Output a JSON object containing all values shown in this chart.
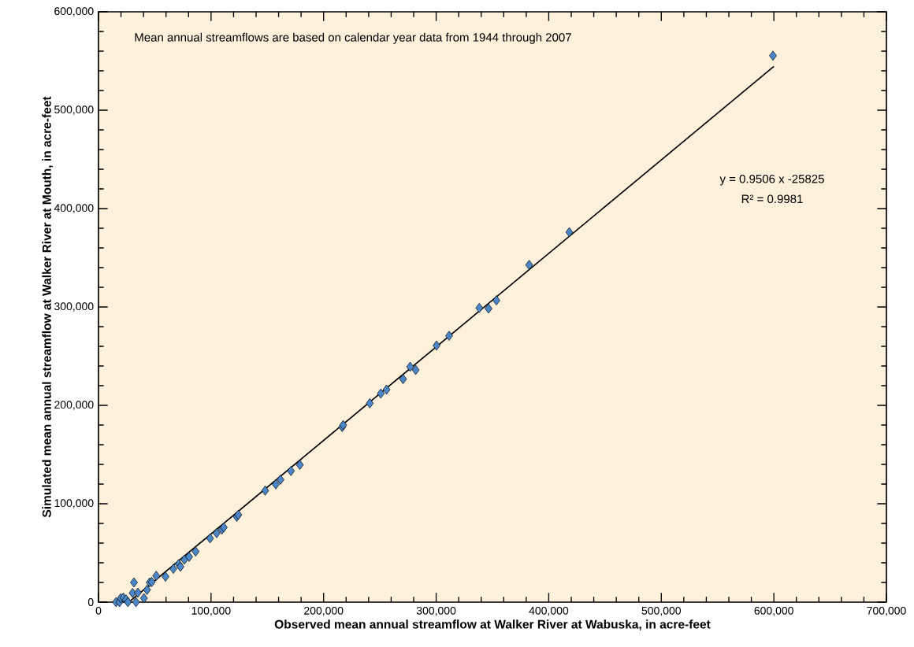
{
  "chart_data": {
    "type": "scatter",
    "xlabel": "Observed mean annual streamflow at Walker River at Wabuska, in acre-feet",
    "ylabel": "Simulated mean annual streamflow at Walker River at Mouth, in acre-feet",
    "annotations": [
      "Mean annual streamflows are based on calendar year data from 1944 through 2007",
      "y = 0.9506 x -25825",
      "R² = 0.9981"
    ],
    "xlim": [
      0,
      700000
    ],
    "ylim": [
      0,
      600000
    ],
    "xticks": [
      0,
      {
        "value": 100000,
        "label": "100,000"
      },
      {
        "value": 200000,
        "label": "200,000"
      },
      {
        "value": 300000,
        "label": "300,000"
      },
      {
        "value": 400000,
        "label": "400,000"
      },
      {
        "value": 500000,
        "label": "500,000"
      },
      {
        "value": 600000,
        "label": "600,000"
      },
      {
        "value": 700000,
        "label": "700,000"
      }
    ],
    "yticks": [
      0,
      {
        "value": 100000,
        "label": "100,000"
      },
      {
        "value": 200000,
        "label": "200,000"
      },
      {
        "value": 300000,
        "label": "300,000"
      },
      {
        "value": 400000,
        "label": "400,000"
      },
      {
        "value": 500000,
        "label": "500,000"
      },
      {
        "value": 600000,
        "label": "600,000"
      }
    ],
    "grid": false,
    "series": [
      {
        "marker": "diamond",
        "color": "#4a86c8",
        "x": [
          15600,
          18700,
          19800,
          22100,
          24500,
          26100,
          30300,
          31500,
          33300,
          35000,
          40400,
          43100,
          45500,
          47300,
          51300,
          59500,
          66500,
          71200,
          72800,
          76300,
          80500,
          86300,
          99100,
          105000,
          109700,
          111300,
          122800,
          124200,
          148100,
          157500,
          161700,
          171000,
          178900,
          216500,
          217400,
          241000,
          250800,
          255900,
          270600,
          276900,
          281800,
          300300,
          311500,
          338300,
          346500,
          353500,
          382600,
          418300,
          599200
        ],
        "values": [
          0,
          0,
          4000,
          4600,
          2700,
          0,
          9300,
          20000,
          0,
          9600,
          4000,
          12500,
          20000,
          20500,
          26700,
          25900,
          33900,
          38700,
          36000,
          43200,
          46100,
          51500,
          64800,
          70100,
          73900,
          76000,
          86700,
          88800,
          113300,
          119700,
          124500,
          133300,
          139500,
          178000,
          180000,
          202100,
          212000,
          216000,
          226700,
          239200,
          236000,
          260800,
          270700,
          299000,
          298400,
          306700,
          342700,
          376000,
          555400
        ]
      },
      {
        "type": "line",
        "marker": "none",
        "color": "#000000",
        "x": [
          27000,
          600000
        ],
        "values": [
          0,
          544500
        ]
      }
    ]
  }
}
